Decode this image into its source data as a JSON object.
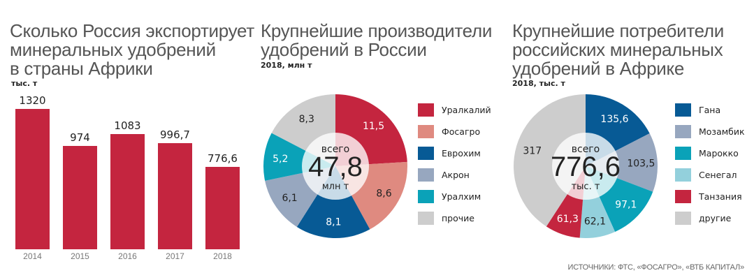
{
  "chart_data": [
    {
      "type": "bar",
      "title": "Сколько Россия экспортирует минеральных удобрений в страны Африки",
      "title_lines": [
        "Сколько Россия экспортирует",
        "минеральных удобрений",
        "в страны Африки"
      ],
      "subtitle": "тыс. т",
      "categories": [
        "2014",
        "2015",
        "2016",
        "2017",
        "2018"
      ],
      "values": [
        1320,
        974,
        1083,
        996.7,
        776.6
      ],
      "value_labels": [
        "1320",
        "974",
        "1083",
        "996,7",
        "776,6"
      ],
      "xlabel": "",
      "ylabel": "тыс. т",
      "ylim": [
        0,
        1320
      ],
      "grid": false,
      "color": "#c4253f"
    },
    {
      "type": "pie",
      "title": "Крупнейшие производители удобрений в России",
      "title_lines": [
        "Крупнейшие производители",
        "удобрений в России"
      ],
      "subtitle": "2018, млн т",
      "center": {
        "top": "всего",
        "value": "47,8",
        "unit": "млн т"
      },
      "total": 47.8,
      "legend_position": "right",
      "slices": [
        {
          "label": "Уралкалий",
          "value": 11.5,
          "value_label": "11,5",
          "color": "#c4253f",
          "text_color": "#ffffff"
        },
        {
          "label": "Фосагро",
          "value": 8.6,
          "value_label": "8,6",
          "color": "#df8a80",
          "text_color": "#222222"
        },
        {
          "label": "Еврохим",
          "value": 8.1,
          "value_label": "8,1",
          "color": "#075a95",
          "text_color": "#ffffff"
        },
        {
          "label": "Акрон",
          "value": 6.1,
          "value_label": "6,1",
          "color": "#97a7bf",
          "text_color": "#222222"
        },
        {
          "label": "Уралхим",
          "value": 5.2,
          "value_label": "5,2",
          "color": "#0aa2b8",
          "text_color": "#ffffff"
        },
        {
          "label": "прочие",
          "value": 8.3,
          "value_label": "8,3",
          "color": "#cdcdcd",
          "text_color": "#222222"
        }
      ]
    },
    {
      "type": "pie",
      "title": "Крупнейшие потребители российских минеральных удобрений в Африке",
      "title_lines": [
        "Крупнейшие потребители",
        "российских минеральных",
        "удобрений в Африке"
      ],
      "subtitle": "2018, тыс. т",
      "center": {
        "top": "всего",
        "value": "776,6",
        "unit": "тыс. т"
      },
      "total": 776.6,
      "legend_position": "right",
      "slices": [
        {
          "label": "Гана",
          "value": 135.6,
          "value_label": "135,6",
          "color": "#075a95",
          "text_color": "#ffffff"
        },
        {
          "label": "Мозамбик",
          "value": 103.5,
          "value_label": "103,5",
          "color": "#97a7bf",
          "text_color": "#222222"
        },
        {
          "label": "Марокко",
          "value": 97.1,
          "value_label": "97,1",
          "color": "#0aa2b8",
          "text_color": "#ffffff"
        },
        {
          "label": "Сенегал",
          "value": 62.1,
          "value_label": "62,1",
          "color": "#93d0dc",
          "text_color": "#222222"
        },
        {
          "label": "Танзания",
          "value": 61.3,
          "value_label": "61,3",
          "color": "#c4253f",
          "text_color": "#ffffff"
        },
        {
          "label": "другие",
          "value": 317,
          "value_label": "317",
          "color": "#cdcdcd",
          "text_color": "#222222"
        }
      ]
    }
  ],
  "source": "ИСТОЧНИКИ: ФТС, «ФОСАГРО», «ВТБ КАПИТАЛ»"
}
